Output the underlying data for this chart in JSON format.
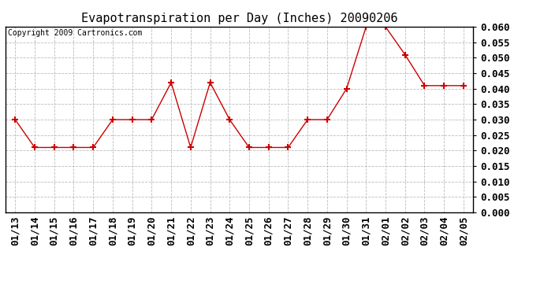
{
  "title": "Evapotranspiration per Day (Inches) 20090206",
  "copyright_text": "Copyright 2009 Cartronics.com",
  "x_labels": [
    "01/13",
    "01/14",
    "01/15",
    "01/16",
    "01/17",
    "01/18",
    "01/19",
    "01/20",
    "01/21",
    "01/22",
    "01/23",
    "01/24",
    "01/25",
    "01/26",
    "01/27",
    "01/28",
    "01/29",
    "01/30",
    "01/31",
    "02/01",
    "02/02",
    "02/03",
    "02/04",
    "02/05"
  ],
  "y_values": [
    0.03,
    0.021,
    0.021,
    0.021,
    0.021,
    0.03,
    0.03,
    0.03,
    0.042,
    0.021,
    0.042,
    0.03,
    0.021,
    0.021,
    0.021,
    0.03,
    0.03,
    0.04,
    0.06,
    0.06,
    0.051,
    0.041,
    0.041,
    0.041
  ],
  "line_color": "#cc0000",
  "marker": "P",
  "marker_size": 4,
  "marker_color": "#cc0000",
  "background_color": "#ffffff",
  "grid_color": "#bbbbbb",
  "ylim_min": 0.0,
  "ylim_max": 0.06,
  "ytick_step": 0.005,
  "title_fontsize": 11,
  "copyright_fontsize": 7,
  "tick_fontsize": 9,
  "border_color": "#000000"
}
